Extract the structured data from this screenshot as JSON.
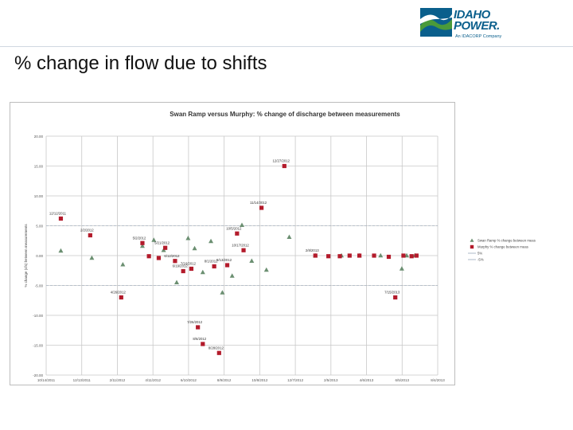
{
  "slide": {
    "title": "% change in flow due to shifts",
    "logo": {
      "text_line1": "IDAHO",
      "text_line2": "POWER.",
      "tagline": "An IDACORP Company"
    }
  },
  "colors": {
    "brand": "#0a5f8c",
    "brand_green": "#4a9a3a",
    "series_triangle": "#6b8f71",
    "series_square": "#b31b2b",
    "grid": "#c8c8c8"
  },
  "chart_data": {
    "type": "scatter",
    "title": "Swan Ramp versus Murphy: % change of discharge between measurements",
    "ylabel": "% change (cfs) between measurements",
    "xlabel": "",
    "ylim": [
      -20,
      20
    ],
    "yticks": [
      "20.00",
      "15.00",
      "10.00",
      "5.00",
      "0.00",
      "-5.00",
      "-10.00",
      "-15.00",
      "-20.00"
    ],
    "xticks": [
      "10/14/2011",
      "12/13/2011",
      "2/11/2012",
      "4/11/2012",
      "6/10/2012",
      "8/9/2012",
      "10/8/2012",
      "12/7/2012",
      "2/5/2013",
      "4/6/2013",
      "6/5/2013",
      "8/4/2013"
    ],
    "grid": true,
    "legend_position": "right",
    "legend": [
      {
        "label": "Swan Ramp % change between meas",
        "marker": "triangle"
      },
      {
        "label": "Murphy % change between meas",
        "marker": "square"
      },
      {
        "label": "5%",
        "marker": "line"
      },
      {
        "label": "-5%",
        "marker": "line"
      }
    ],
    "series": [
      {
        "name": "Swan Ramp % change between meas",
        "marker": "triangle",
        "points": [
          {
            "x": 0.9,
            "y": 0.8
          },
          {
            "x": 2.8,
            "y": -0.4
          },
          {
            "x": 4.7,
            "y": -1.5
          },
          {
            "x": 5.9,
            "y": 1.6
          },
          {
            "x": 6.6,
            "y": 2.6
          },
          {
            "x": 7.2,
            "y": 0.9
          },
          {
            "x": 8.0,
            "y": -4.5
          },
          {
            "x": 8.7,
            "y": 2.9
          },
          {
            "x": 9.1,
            "y": 1.2
          },
          {
            "x": 9.6,
            "y": -2.8
          },
          {
            "x": 10.1,
            "y": 2.4
          },
          {
            "x": 10.8,
            "y": -6.2
          },
          {
            "x": 11.4,
            "y": -3.4
          },
          {
            "x": 12.0,
            "y": 5.1
          },
          {
            "x": 12.6,
            "y": -0.9
          },
          {
            "x": 13.5,
            "y": -2.4
          },
          {
            "x": 14.9,
            "y": 3.1
          },
          {
            "x": 16.5,
            "y": 0.0
          },
          {
            "x": 18.1,
            "y": 0.0
          },
          {
            "x": 19.2,
            "y": 0.0
          },
          {
            "x": 20.5,
            "y": 0.0
          },
          {
            "x": 21.8,
            "y": -2.2
          },
          {
            "x": 22.1,
            "y": 0.0
          },
          {
            "x": 22.6,
            "y": 0.0
          }
        ]
      },
      {
        "name": "Murphy % change between meas",
        "marker": "square",
        "points": [
          {
            "x": 0.9,
            "y": 6.2,
            "label": "12/12/2011"
          },
          {
            "x": 2.7,
            "y": 3.4,
            "label": "2/2/2012"
          },
          {
            "x": 4.6,
            "y": -7.0,
            "label": "4/26/2012"
          },
          {
            "x": 5.9,
            "y": 2.1,
            "label": "5/2/2012"
          },
          {
            "x": 6.3,
            "y": -0.1,
            "label": ""
          },
          {
            "x": 6.9,
            "y": -0.4,
            "label": ""
          },
          {
            "x": 7.3,
            "y": 1.3,
            "label": "5/21/2012"
          },
          {
            "x": 7.9,
            "y": -0.9,
            "label": "6/12/2012"
          },
          {
            "x": 8.4,
            "y": -2.6,
            "label": "6/19/2012"
          },
          {
            "x": 8.9,
            "y": -2.2,
            "label": "7/16/2012"
          },
          {
            "x": 9.3,
            "y": -12.0,
            "label": "7/26/2012"
          },
          {
            "x": 9.6,
            "y": -14.8,
            "label": "8/6/2012"
          },
          {
            "x": 10.3,
            "y": -1.8,
            "label": "8/1/2012"
          },
          {
            "x": 10.6,
            "y": -16.3,
            "label": "8/28/2012"
          },
          {
            "x": 11.1,
            "y": -1.6,
            "label": "9/13/2012"
          },
          {
            "x": 11.7,
            "y": 3.7,
            "label": "10/5/2012"
          },
          {
            "x": 12.1,
            "y": 0.9,
            "label": "10/17/2012"
          },
          {
            "x": 13.2,
            "y": 8.0,
            "label": "11/14/2012"
          },
          {
            "x": 14.6,
            "y": 15.0,
            "label": "12/27/2012"
          },
          {
            "x": 16.5,
            "y": 0.0,
            "label": "2/8/2013"
          },
          {
            "x": 17.3,
            "y": -0.1,
            "label": ""
          },
          {
            "x": 18.0,
            "y": -0.1,
            "label": ""
          },
          {
            "x": 18.6,
            "y": 0.0,
            "label": ""
          },
          {
            "x": 19.2,
            "y": 0.0,
            "label": ""
          },
          {
            "x": 20.1,
            "y": 0.0,
            "label": ""
          },
          {
            "x": 21.0,
            "y": -0.2,
            "label": ""
          },
          {
            "x": 21.4,
            "y": -7.0,
            "label": "7/15/2013"
          },
          {
            "x": 21.9,
            "y": 0.0,
            "label": ""
          },
          {
            "x": 22.4,
            "y": -0.1,
            "label": ""
          },
          {
            "x": 22.7,
            "y": 0.0,
            "label": ""
          }
        ]
      }
    ],
    "reference_lines": [
      {
        "name": "5%",
        "y": 5
      },
      {
        "name": "-5%",
        "y": -5
      }
    ],
    "xlim": [
      0,
      24
    ]
  }
}
